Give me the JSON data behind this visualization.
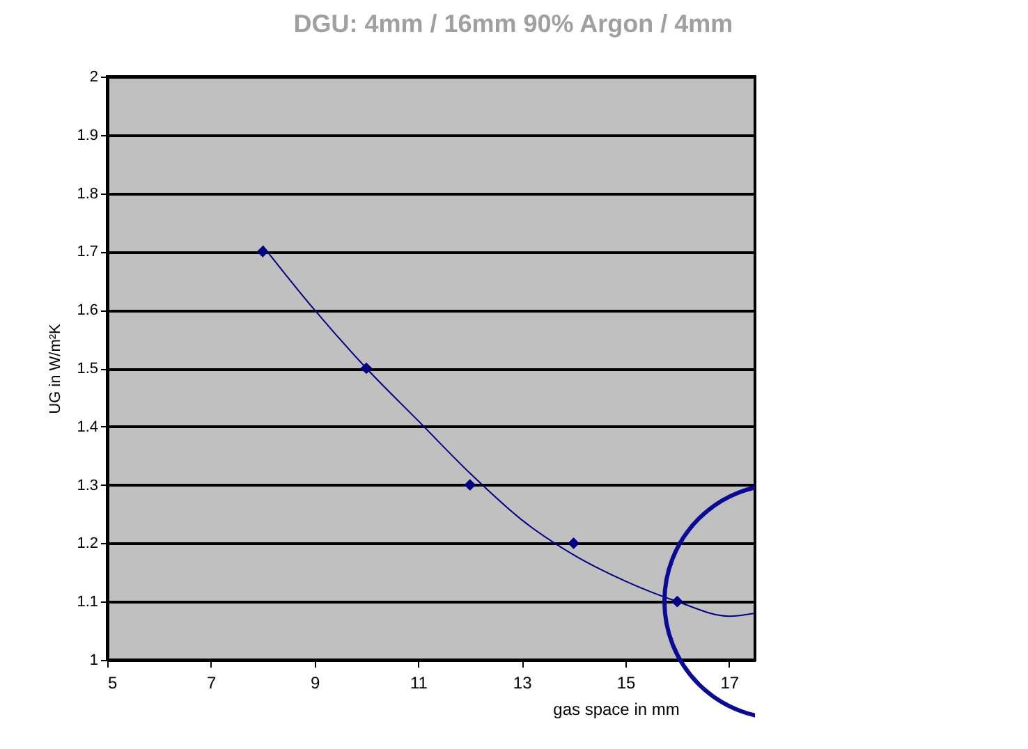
{
  "chart_data": {
    "type": "scatter",
    "title": "DGU: 4mm / 16mm 90% Argon / 4mm",
    "xlabel": "gas space in mm",
    "ylabel": "UG in W/m²K",
    "xlim": [
      5,
      17.5
    ],
    "xticks": [
      5,
      7,
      9,
      11,
      13,
      15,
      17
    ],
    "ylim": [
      1,
      2
    ],
    "yticks": [
      1,
      1.1,
      1.2,
      1.3,
      1.4,
      1.5,
      1.6,
      1.7,
      1.8,
      1.9,
      2
    ],
    "grid": "y",
    "series": [
      {
        "type": "scatter",
        "marker": "diamond",
        "color": "#000080",
        "x": [
          8,
          10,
          12,
          14,
          16
        ],
        "values": [
          1.7,
          1.5,
          1.3,
          1.2,
          1.1
        ]
      },
      {
        "type": "line",
        "marker": "none",
        "color": "#000080",
        "x": [
          8,
          9,
          10,
          11,
          12,
          13,
          14,
          15,
          16,
          17,
          17.5
        ],
        "values": [
          1.71,
          1.6,
          1.5,
          1.41,
          1.32,
          1.24,
          1.18,
          1.135,
          1.1,
          1.075,
          1.08
        ]
      }
    ]
  }
}
